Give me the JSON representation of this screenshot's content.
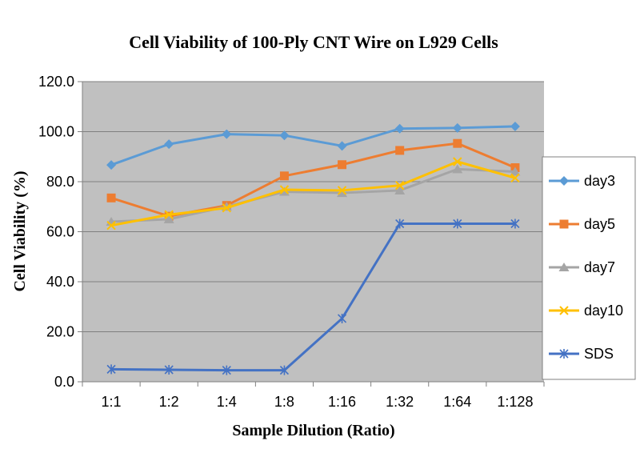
{
  "chart_data": {
    "type": "line",
    "title": "Cell Viability of 100-Ply CNT Wire on L929 Cells",
    "xlabel": "Sample Dilution (Ratio)",
    "ylabel": "Cell Viability (%)",
    "categories": [
      "1:1",
      "1:2",
      "1:4",
      "1:8",
      "1:16",
      "1:32",
      "1:64",
      "1:128"
    ],
    "ylim": [
      0,
      120
    ],
    "yticks": [
      "0.0",
      "20.0",
      "40.0",
      "60.0",
      "80.0",
      "100.0",
      "120.0"
    ],
    "grid": true,
    "legend": "right",
    "series": [
      {
        "name": "day3",
        "color": "#5B9BD5",
        "marker": "diamond",
        "values": [
          86.7,
          95.0,
          99.0,
          98.5,
          94.3,
          101.2,
          101.5,
          102.1
        ]
      },
      {
        "name": "day5",
        "color": "#ED7D31",
        "marker": "square",
        "values": [
          73.5,
          66.2,
          70.5,
          82.3,
          86.8,
          92.5,
          95.3,
          85.6
        ]
      },
      {
        "name": "day7",
        "color": "#A5A5A5",
        "marker": "triangle",
        "values": [
          64.0,
          65.0,
          70.0,
          76.0,
          75.5,
          76.5,
          85.0,
          84.0
        ]
      },
      {
        "name": "day10",
        "color": "#FFC000",
        "marker": "x",
        "values": [
          62.5,
          66.8,
          69.5,
          76.8,
          76.5,
          78.5,
          88.0,
          81.5
        ]
      },
      {
        "name": "SDS",
        "color": "#4472C4",
        "marker": "star",
        "values": [
          5.0,
          4.8,
          4.6,
          4.6,
          25.3,
          63.2,
          63.2,
          63.2
        ]
      }
    ]
  }
}
